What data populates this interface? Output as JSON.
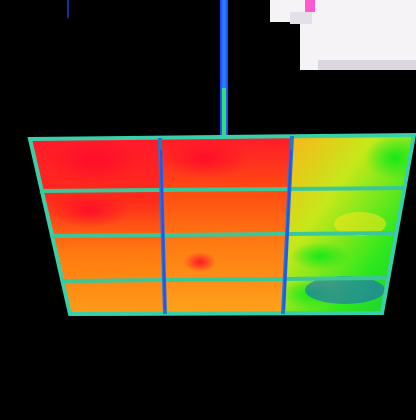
{
  "image": {
    "subject": "thermal-image-solar-panel-array",
    "palette": {
      "background": "#000000",
      "hot": "#ff1a2a",
      "warm_orange": "#ff8a1a",
      "warm_yellow": "#ffd21a",
      "cool_green": "#1de81d",
      "cold_blue": "#1a3cff",
      "frame_cyan": "#38d0a8",
      "overexposed_white": "#f6f3f6",
      "overexposed_pink": "#ff5ad0"
    }
  }
}
